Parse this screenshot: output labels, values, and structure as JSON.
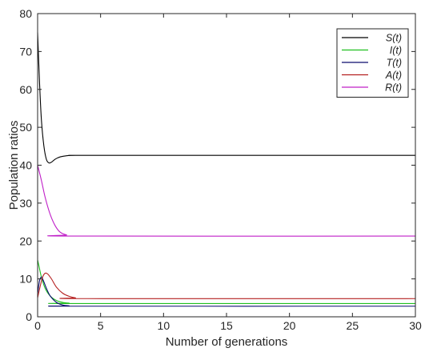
{
  "chart_data": {
    "type": "line",
    "xlabel": "Number of generations",
    "ylabel": "Population ratios",
    "xlim": [
      0,
      30
    ],
    "ylim": [
      0,
      80
    ],
    "x_ticks": [
      0,
      5,
      10,
      15,
      20,
      25,
      30
    ],
    "y_ticks": [
      0,
      10,
      20,
      30,
      40,
      50,
      60,
      70,
      80
    ],
    "x_tick_labels": [
      "0",
      "5",
      "10",
      "15",
      "20",
      "25",
      "30"
    ],
    "y_tick_labels": [
      "0",
      "10",
      "20",
      "30",
      "40",
      "50",
      "60",
      "70",
      "80"
    ],
    "grid": false,
    "legend_position": "top-right",
    "series": [
      {
        "name": "S(t)",
        "color": "#000000",
        "points": [
          [
            0,
            75
          ],
          [
            0.15,
            62
          ],
          [
            0.3,
            52
          ],
          [
            0.5,
            45
          ],
          [
            0.7,
            41.5
          ],
          [
            0.9,
            40.6
          ],
          [
            1.1,
            40.8
          ],
          [
            1.4,
            41.6
          ],
          [
            1.8,
            42.2
          ],
          [
            2.3,
            42.5
          ],
          [
            3,
            42.6
          ],
          [
            5,
            42.6
          ],
          [
            30,
            42.6
          ]
        ]
      },
      {
        "name": "I(t)",
        "color": "#1fbf1f",
        "points": [
          [
            0,
            15
          ],
          [
            0.1,
            13.5
          ],
          [
            0.3,
            10.5
          ],
          [
            0.6,
            7.5
          ],
          [
            1,
            5.5
          ],
          [
            1.5,
            4.3
          ],
          [
            2,
            3.8
          ],
          [
            2.5,
            3.6
          ],
          [
            3,
            3.5
          ],
          [
            30,
            3.5
          ]
        ]
      },
      {
        "name": "T(t)",
        "color": "#0a0a6e",
        "points": [
          [
            0,
            6
          ],
          [
            0.15,
            9.5
          ],
          [
            0.3,
            10.5
          ],
          [
            0.45,
            9.6
          ],
          [
            0.7,
            7.5
          ],
          [
            1,
            5.5
          ],
          [
            1.5,
            3.8
          ],
          [
            2,
            3.1
          ],
          [
            2.5,
            2.9
          ],
          [
            3,
            2.8
          ],
          [
            30,
            2.8
          ]
        ]
      },
      {
        "name": "A(t)",
        "color": "#b52020",
        "points": [
          [
            0,
            5
          ],
          [
            0.2,
            8
          ],
          [
            0.4,
            10.5
          ],
          [
            0.6,
            11.5
          ],
          [
            0.8,
            11.3
          ],
          [
            1.1,
            10
          ],
          [
            1.5,
            7.8
          ],
          [
            2,
            6.2
          ],
          [
            2.5,
            5.4
          ],
          [
            3,
            5
          ],
          [
            4,
            4.8
          ],
          [
            30,
            4.8
          ]
        ]
      },
      {
        "name": "R(t)",
        "color": "#c020c8",
        "points": [
          [
            0,
            40
          ],
          [
            0.3,
            36
          ],
          [
            0.6,
            31.5
          ],
          [
            1,
            27
          ],
          [
            1.4,
            24
          ],
          [
            1.8,
            22.3
          ],
          [
            2.3,
            21.6
          ],
          [
            3,
            21.3
          ],
          [
            30,
            21.3
          ]
        ]
      }
    ]
  }
}
